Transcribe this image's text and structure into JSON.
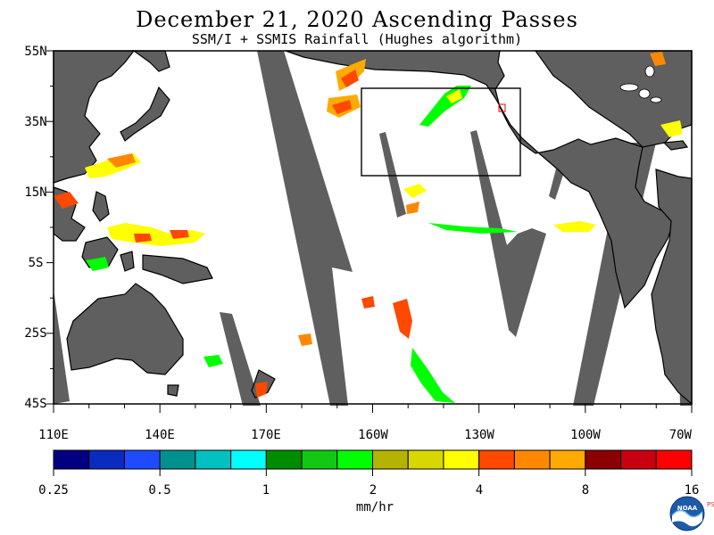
{
  "title": "December 21, 2020  Ascending Passes",
  "subtitle": "SSM/I + SSMIS Rainfall (Hughes algorithm)",
  "map": {
    "lon_labels": [
      "110E",
      "140E",
      "170E",
      "160W",
      "130W",
      "100W",
      "70W"
    ],
    "lat_labels": [
      "55N",
      "35N",
      "15N",
      "5S",
      "25S",
      "45S"
    ],
    "land_color": "#5f5f5f",
    "no_data_color": "#5f5f5f",
    "ocean_color": "#ffffff",
    "highlight_box": {
      "lon_west": "-157",
      "lon_east": "-116",
      "lat_south": "20",
      "lat_north": "44"
    }
  },
  "colorbar": {
    "colors": [
      "#000080",
      "#0a2bbf",
      "#1e4bff",
      "#00918f",
      "#00c0c0",
      "#00ffff",
      "#008c00",
      "#13c813",
      "#00ff00",
      "#b4b400",
      "#d8d800",
      "#ffff00",
      "#ff4800",
      "#ff8800",
      "#ffaa00",
      "#8b0000",
      "#c80010",
      "#ff0000"
    ],
    "labels": [
      "0.25",
      "0.5",
      "1",
      "2",
      "4",
      "8",
      "16"
    ],
    "units": "mm/hr"
  },
  "logo": {
    "name": "NOAA",
    "side_text": "PSL"
  }
}
